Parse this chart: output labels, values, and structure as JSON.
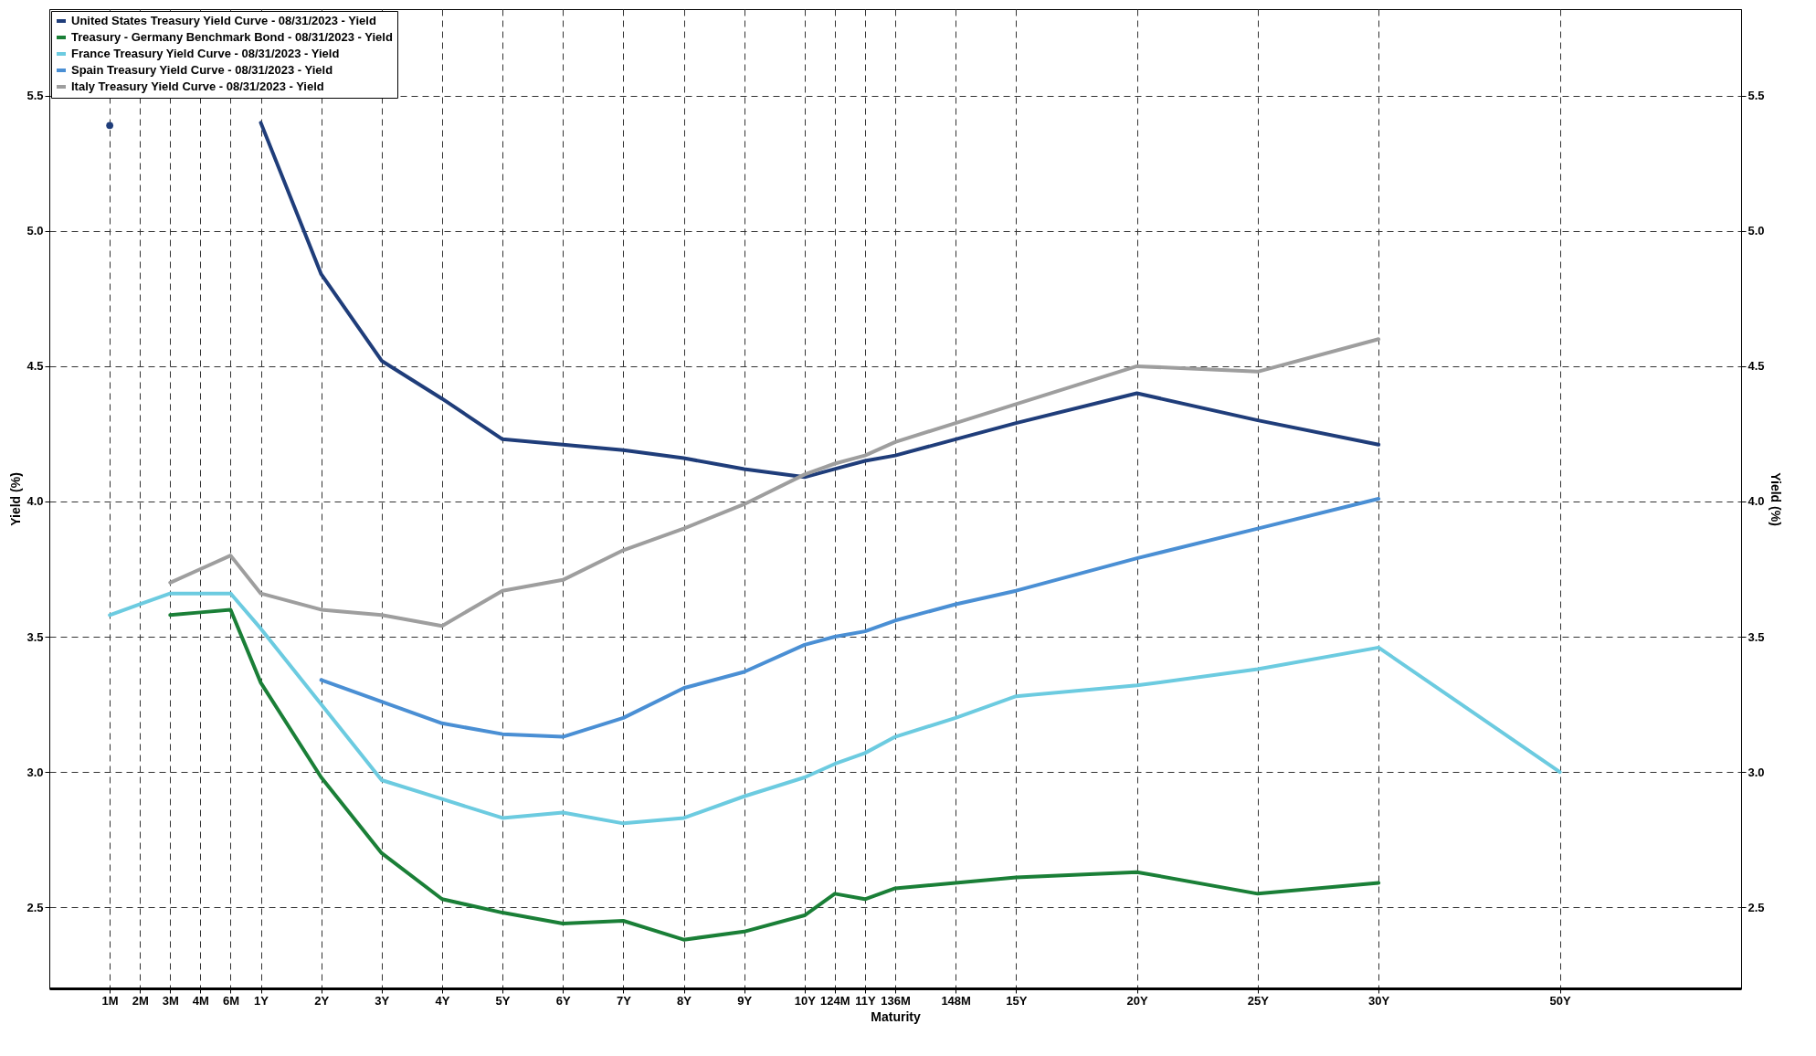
{
  "chart_data": {
    "type": "line",
    "xlabel": "Maturity",
    "ylabel": "Yield (%)",
    "y2label": "Yield (%)",
    "categories": [
      null,
      null,
      "1M",
      "2M",
      "3M",
      "4M",
      "6M",
      "1Y",
      null,
      "2Y",
      null,
      "3Y",
      null,
      "4Y",
      null,
      "5Y",
      null,
      "6Y",
      null,
      "7Y",
      null,
      "8Y",
      null,
      "9Y",
      null,
      "10Y",
      "124M",
      "11Y",
      "136M",
      null,
      "148M",
      null,
      "15Y",
      null,
      null,
      null,
      "20Y",
      null,
      null,
      null,
      "25Y",
      null,
      null,
      null,
      "30Y",
      null,
      null,
      null,
      null,
      null,
      "50Y",
      null,
      null,
      null,
      null,
      null,
      null
    ],
    "series": [
      {
        "name": "United States Treasury Yield Curve - 08/31/2023 - Yield",
        "color": "#1f3d7a",
        "values": [
          null,
          null,
          5.39,
          null,
          null,
          null,
          null,
          5.4,
          null,
          4.84,
          null,
          4.52,
          null,
          4.38,
          null,
          4.23,
          null,
          4.21,
          null,
          4.19,
          null,
          4.16,
          null,
          4.12,
          null,
          4.09,
          4.12,
          4.15,
          4.17,
          null,
          4.23,
          null,
          4.29,
          null,
          null,
          null,
          4.4,
          null,
          null,
          null,
          4.3,
          null,
          null,
          null,
          4.21,
          null,
          null,
          null,
          null,
          null,
          null,
          null,
          null,
          null,
          null,
          null,
          null
        ]
      },
      {
        "name": "Treasury - Germany Benchmark Bond - 08/31/2023 - Yield",
        "color": "#1a7f37",
        "values": [
          null,
          null,
          null,
          null,
          3.58,
          3.59,
          3.6,
          3.33,
          null,
          2.98,
          null,
          2.7,
          null,
          2.53,
          null,
          2.48,
          null,
          2.44,
          null,
          2.45,
          null,
          2.38,
          null,
          2.41,
          null,
          2.47,
          2.55,
          2.53,
          2.57,
          null,
          2.59,
          null,
          2.61,
          null,
          null,
          null,
          2.63,
          null,
          null,
          null,
          2.55,
          null,
          null,
          null,
          2.59,
          null,
          null,
          null,
          null,
          null,
          null,
          null,
          null,
          null,
          null,
          null,
          null
        ]
      },
      {
        "name": "France Treasury Yield Curve - 08/31/2023 - Yield",
        "color": "#6ccbe0",
        "values": [
          null,
          null,
          3.58,
          3.62,
          3.66,
          3.66,
          3.66,
          3.53,
          null,
          3.25,
          null,
          2.97,
          null,
          2.9,
          null,
          2.83,
          null,
          2.85,
          null,
          2.81,
          null,
          2.83,
          null,
          2.91,
          null,
          2.98,
          3.03,
          3.07,
          3.13,
          null,
          3.2,
          null,
          3.28,
          null,
          null,
          null,
          3.32,
          null,
          null,
          null,
          3.38,
          null,
          null,
          null,
          3.46,
          null,
          null,
          null,
          null,
          null,
          3.0,
          null,
          null,
          null,
          null,
          null,
          null
        ]
      },
      {
        "name": "Spain Treasury Yield Curve - 08/31/2023 - Yield",
        "color": "#4a8fd4",
        "values": [
          null,
          null,
          null,
          null,
          null,
          null,
          null,
          null,
          null,
          3.34,
          null,
          3.26,
          null,
          3.18,
          null,
          3.14,
          null,
          3.13,
          null,
          3.2,
          null,
          3.31,
          null,
          3.37,
          null,
          3.47,
          3.5,
          3.52,
          3.56,
          null,
          3.62,
          null,
          3.67,
          null,
          null,
          null,
          3.79,
          null,
          null,
          null,
          3.9,
          null,
          null,
          null,
          4.01,
          null,
          null,
          null,
          null,
          null,
          null,
          null,
          null,
          null,
          null,
          null,
          null
        ]
      },
      {
        "name": "Italy Treasury Yield Curve - 08/31/2023 - Yield",
        "color": "#9e9e9e",
        "values": [
          null,
          null,
          null,
          null,
          3.7,
          3.75,
          3.8,
          3.66,
          null,
          3.6,
          null,
          3.58,
          null,
          3.54,
          null,
          3.67,
          null,
          3.71,
          null,
          3.82,
          null,
          3.9,
          null,
          3.99,
          null,
          4.1,
          4.14,
          4.17,
          4.22,
          null,
          4.29,
          null,
          4.36,
          null,
          null,
          null,
          4.5,
          null,
          null,
          null,
          4.48,
          null,
          null,
          null,
          4.6,
          null,
          null,
          null,
          null,
          null,
          null,
          null,
          null,
          null,
          null,
          null,
          null
        ]
      }
    ],
    "ylim": [
      2.2,
      5.82
    ],
    "yticks": [
      2.5,
      {
        "value": 3,
        "label": "3.0"
      },
      3.5,
      {
        "value": 4,
        "label": "4.0"
      },
      4.5,
      {
        "value": 5,
        "label": "5.0"
      },
      5.5
    ],
    "y2lim": [
      2.2,
      5.82
    ],
    "y2ticks": [
      2.5,
      {
        "value": 3,
        "label": "3.0"
      },
      3.5,
      {
        "value": 4,
        "label": "4.0"
      },
      4.5,
      {
        "value": 5,
        "label": "5.0"
      },
      5.5
    ],
    "grid": true,
    "legend": "top left",
    "line_style": "solid"
  }
}
